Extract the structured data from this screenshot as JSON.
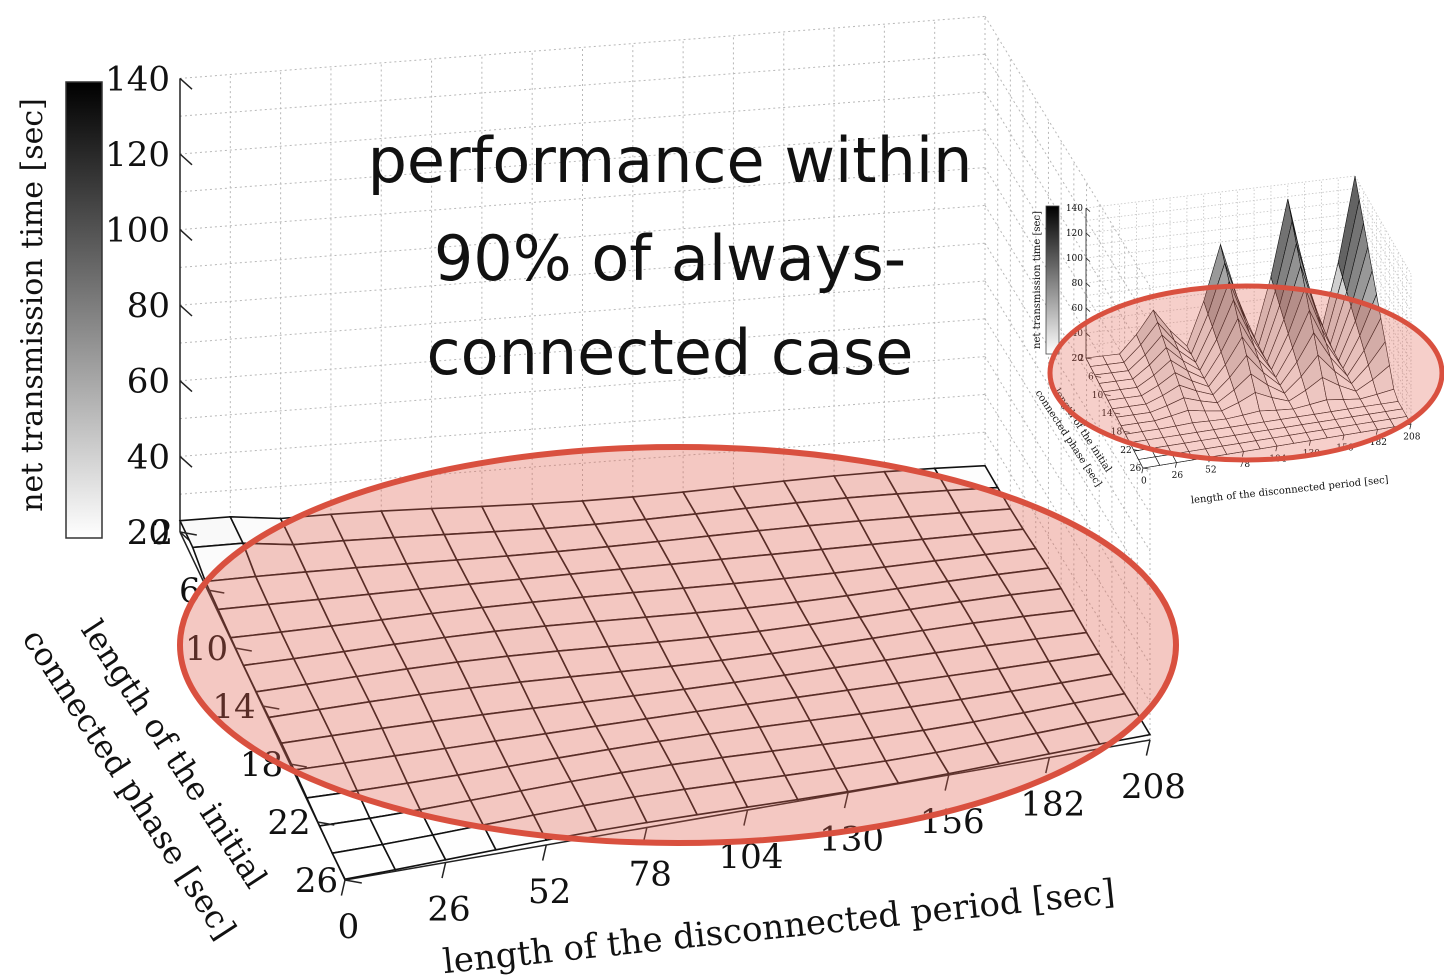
{
  "annotation": {
    "lines": [
      "performance within",
      "90% of always-",
      "connected case"
    ]
  },
  "chart_data": [
    {
      "type": "surface3d",
      "zlabel": "net transmission time [sec]",
      "xlabel": "length of the disconnected period [sec]",
      "ylabel_lines": [
        "length of the initial",
        "connected phase [sec]"
      ],
      "z_ticks": [
        20,
        40,
        60,
        80,
        100,
        120,
        140
      ],
      "x_ticks": [
        0,
        26,
        52,
        78,
        104,
        130,
        156,
        182,
        208
      ],
      "y_ticks": [
        2,
        6,
        10,
        14,
        18,
        22,
        26
      ],
      "colorbar_ticks": [],
      "zlim": [
        20,
        140
      ],
      "surface_value_range": [
        20,
        23
      ],
      "colorbar": "white-to-black grayscale"
    },
    {
      "type": "surface3d",
      "zlabel": "net transmission time [sec]",
      "xlabel": "length of the disconnected period [sec]",
      "ylabel_lines": [
        "length of the initial",
        "connected phase [sec]"
      ],
      "z_ticks": [
        20,
        40,
        60,
        80,
        100,
        120,
        140
      ],
      "x_ticks": [
        0,
        26,
        52,
        78,
        104,
        130,
        156,
        182,
        208
      ],
      "y_ticks": [
        2,
        6,
        10,
        14,
        18,
        22,
        26
      ],
      "zlim": [
        20,
        140
      ],
      "peaks": [
        {
          "x": 52,
          "y": 2,
          "z": 52
        },
        {
          "x": 104,
          "y": 2,
          "z": 98
        },
        {
          "x": 156,
          "y": 2,
          "z": 128
        },
        {
          "x": 208,
          "y": 2,
          "z": 140
        }
      ]
    }
  ]
}
